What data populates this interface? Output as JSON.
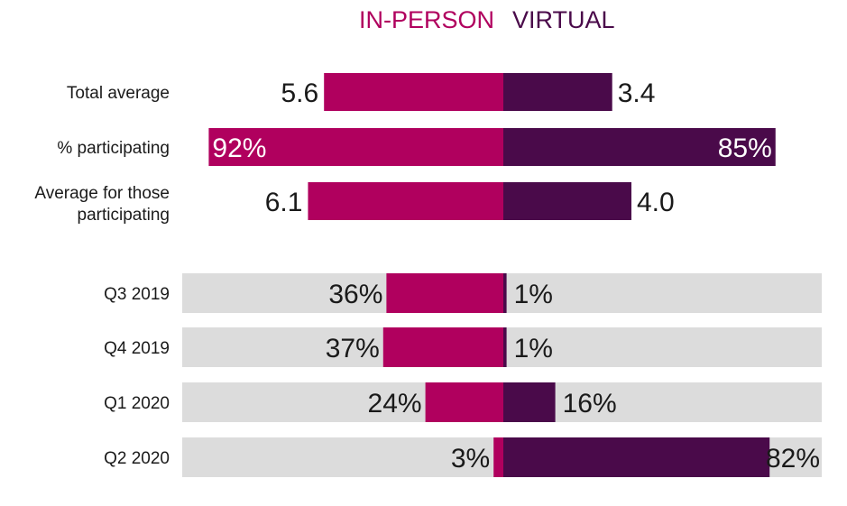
{
  "chart_data": {
    "type": "bar",
    "legend": [
      {
        "name": "IN-PERSON",
        "color": "#b0005e"
      },
      {
        "name": "VIRTUAL",
        "color": "#4a0a4a"
      }
    ],
    "colors": {
      "in_person": "#b0005e",
      "virtual": "#4a0a4a",
      "track": "#dcdcdc",
      "label": "#1a1a1a",
      "value_on_bar": "#ffffff"
    },
    "top_rows": [
      {
        "label_lines": [
          "Total average"
        ],
        "in_person": 5.6,
        "virtual": 3.4,
        "in_person_text": "5.6",
        "virtual_text": "3.4"
      },
      {
        "label_lines": [
          "% participating"
        ],
        "in_person": 92,
        "virtual": 85,
        "in_person_text": "92%",
        "virtual_text": "85%"
      },
      {
        "label_lines": [
          "Average for those",
          "participating"
        ],
        "in_person": 6.1,
        "virtual": 4.0,
        "in_person_text": "6.1",
        "virtual_text": "4.0"
      }
    ],
    "quarter_rows": [
      {
        "label": "Q3 2019",
        "in_person": 36,
        "virtual": 1,
        "in_person_text": "36%",
        "virtual_text": "1%"
      },
      {
        "label": "Q4 2019",
        "in_person": 37,
        "virtual": 1,
        "in_person_text": "37%",
        "virtual_text": "1%"
      },
      {
        "label": "Q1 2020",
        "in_person": 24,
        "virtual": 16,
        "in_person_text": "24%",
        "virtual_text": "16%"
      },
      {
        "label": "Q2 2020",
        "in_person": 3,
        "virtual": 82,
        "in_person_text": "3%",
        "virtual_text": "82%"
      }
    ]
  }
}
